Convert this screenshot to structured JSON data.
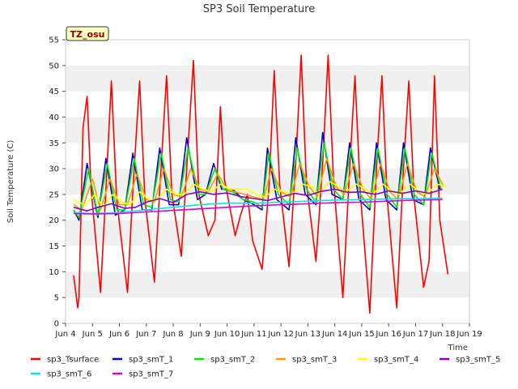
{
  "chart_data": {
    "type": "line",
    "title": "SP3 Soil Temperature",
    "xlabel": "Time",
    "ylabel": "Soil Temperature (C)",
    "site_tag": "TZ_osu",
    "ylim": [
      0,
      55
    ],
    "yticks": [
      0,
      5,
      10,
      15,
      20,
      25,
      30,
      35,
      40,
      45,
      50,
      55
    ],
    "xlim": [
      4,
      19
    ],
    "xticks": [
      4,
      5,
      6,
      7,
      8,
      9,
      10,
      11,
      12,
      13,
      14,
      15,
      16,
      17,
      18,
      19
    ],
    "xtick_labels": [
      "Jun 4",
      "Jun 5",
      "Jun 6",
      "Jun 7",
      "Jun 8",
      "Jun 9",
      "Jun 10",
      "Jun 11",
      "Jun 12",
      "Jun 13",
      "Jun 14",
      "Jun 15",
      "Jun 16",
      "Jun 17",
      "Jun 18",
      "Jun 19"
    ],
    "grid": "horizontal bands",
    "legend_placement": "bottom",
    "series": [
      {
        "name": "sp3_Tsurface",
        "color": "#ff0000",
        "x": [
          4.3,
          4.45,
          4.5,
          4.65,
          4.8,
          4.95,
          5.3,
          5.5,
          5.7,
          5.9,
          6.3,
          6.5,
          6.75,
          6.95,
          7.3,
          7.5,
          7.75,
          7.95,
          8.3,
          8.5,
          8.75,
          8.95,
          9.3,
          9.55,
          9.75,
          9.9,
          10.3,
          10.5,
          10.75,
          10.95,
          11.3,
          11.55,
          11.75,
          11.95,
          12.3,
          12.55,
          12.75,
          12.95,
          13.3,
          13.55,
          13.75,
          13.95,
          14.3,
          14.55,
          14.75,
          14.95,
          15.3,
          15.55,
          15.75,
          15.95,
          16.3,
          16.55,
          16.75,
          16.95,
          17.3,
          17.5,
          17.7,
          17.9,
          18.2
        ],
        "y": [
          9.3,
          3,
          5,
          38,
          44,
          26,
          6,
          26,
          47,
          24,
          6,
          26,
          47,
          24,
          8,
          26,
          48,
          25,
          13,
          30,
          51,
          25,
          17,
          20,
          42,
          28,
          17,
          21,
          25,
          16,
          10.5,
          26,
          49,
          27,
          11,
          31,
          52,
          27,
          12,
          31,
          52,
          28,
          5,
          30,
          48,
          25,
          2,
          30,
          48,
          24,
          3,
          30,
          47,
          24,
          7,
          12,
          48,
          20,
          9.5
        ]
      },
      {
        "name": "sp3_smT_1",
        "color": "#0000cc",
        "x": [
          4.3,
          4.5,
          4.8,
          5.2,
          5.5,
          5.85,
          6.2,
          6.5,
          6.85,
          7.2,
          7.5,
          7.85,
          8.2,
          8.5,
          8.9,
          9.2,
          9.5,
          9.8,
          10.2,
          10.6,
          11.0,
          11.3,
          11.5,
          11.85,
          12.3,
          12.55,
          12.9,
          13.3,
          13.55,
          13.9,
          14.3,
          14.55,
          14.9,
          15.3,
          15.55,
          15.9,
          16.3,
          16.55,
          16.9,
          17.3,
          17.55,
          17.9
        ],
        "y": [
          22,
          20,
          31,
          20.5,
          32,
          21,
          22,
          33,
          22,
          22,
          34,
          23,
          23,
          36,
          24,
          25,
          31,
          26,
          26,
          24,
          23,
          22,
          34,
          24,
          22,
          36,
          25,
          23,
          37,
          25,
          24,
          35,
          24,
          22,
          35,
          24,
          22,
          35,
          24,
          23,
          34,
          26
        ]
      },
      {
        "name": "sp3_smT_2",
        "color": "#00ee00",
        "x": [
          4.3,
          4.5,
          4.85,
          5.2,
          5.55,
          5.9,
          6.2,
          6.55,
          6.9,
          7.2,
          7.55,
          7.9,
          8.2,
          8.55,
          8.95,
          9.2,
          9.55,
          9.85,
          10.2,
          10.6,
          11.0,
          11.3,
          11.55,
          11.9,
          12.3,
          12.6,
          12.95,
          13.3,
          13.6,
          13.95,
          14.3,
          14.6,
          14.95,
          15.3,
          15.6,
          15.95,
          16.3,
          16.6,
          16.95,
          17.3,
          17.6,
          17.95
        ],
        "y": [
          22,
          20.5,
          30,
          21,
          31,
          22,
          22,
          32,
          23,
          22.5,
          33,
          24,
          23.5,
          34,
          25,
          25,
          30,
          26,
          25.5,
          24,
          23.5,
          22.5,
          33,
          25,
          23,
          34,
          26,
          23.5,
          35,
          26,
          24,
          34,
          25,
          22.5,
          34,
          25,
          22.5,
          34,
          25,
          23,
          33,
          26
        ]
      },
      {
        "name": "sp3_smT_3",
        "color": "#ff9900",
        "x": [
          4.3,
          4.6,
          5.0,
          5.3,
          5.65,
          6.0,
          6.3,
          6.65,
          7.0,
          7.3,
          7.65,
          8.0,
          8.3,
          8.65,
          9.0,
          9.3,
          9.65,
          10.0,
          10.3,
          10.65,
          11.0,
          11.35,
          11.65,
          12.0,
          12.35,
          12.7,
          13.05,
          13.35,
          13.7,
          14.05,
          14.35,
          14.7,
          15.05,
          15.35,
          15.7,
          16.05,
          16.35,
          16.7,
          17.05,
          17.35,
          17.7,
          18.05
        ],
        "y": [
          23,
          22,
          28,
          22,
          28,
          23,
          23,
          29,
          24,
          23.5,
          30,
          25,
          24.5,
          30,
          26,
          25.5,
          29,
          26,
          25.5,
          25,
          24.5,
          24,
          30,
          25.5,
          24.5,
          31,
          26.5,
          24.5,
          32,
          26.5,
          25,
          31,
          26,
          24,
          31,
          25.5,
          24,
          31,
          25.5,
          24.5,
          30,
          26.5
        ]
      },
      {
        "name": "sp3_smT_4",
        "color": "#ffff00",
        "x": [
          4.3,
          4.7,
          5.1,
          5.4,
          5.75,
          6.1,
          6.4,
          6.75,
          7.1,
          7.4,
          7.75,
          8.1,
          8.4,
          8.75,
          9.1,
          9.4,
          9.75,
          10.1,
          10.4,
          10.75,
          11.1,
          11.4,
          11.75,
          12.1,
          12.4,
          12.8,
          13.15,
          13.4,
          13.8,
          14.15,
          14.4,
          14.8,
          15.15,
          15.4,
          15.8,
          16.15,
          16.4,
          16.8,
          17.15,
          17.4,
          17.8,
          18.15
        ],
        "y": [
          24,
          23,
          25,
          22.5,
          25,
          23.5,
          23,
          25.5,
          24,
          24,
          26,
          25,
          25,
          27,
          26,
          25.5,
          27,
          26,
          26,
          26,
          25,
          24.5,
          26,
          25.5,
          25,
          27,
          26.5,
          25,
          27.5,
          26.5,
          25.5,
          27,
          26,
          25,
          27,
          25.5,
          25,
          27,
          25.5,
          25,
          27,
          26.5
        ]
      },
      {
        "name": "sp3_smT_5",
        "color": "#8800cc",
        "x": [
          4.3,
          4.8,
          5.2,
          5.7,
          6.2,
          6.6,
          7.0,
          7.5,
          8.0,
          8.5,
          9.0,
          9.5,
          10.0,
          10.5,
          11.0,
          11.5,
          12.0,
          12.5,
          13.0,
          13.5,
          14.0,
          14.5,
          15.0,
          15.5,
          16.0,
          16.5,
          17.0,
          17.5,
          18.0
        ],
        "y": [
          22.5,
          21.8,
          22.5,
          23.2,
          22.3,
          22.5,
          23.5,
          24.2,
          23.4,
          25,
          25.5,
          25,
          25.3,
          24.6,
          24.2,
          23.8,
          24.5,
          25.2,
          24.8,
          25.6,
          26,
          25.4,
          25.5,
          25,
          25.7,
          25.2,
          25.7,
          25.2,
          26
        ]
      },
      {
        "name": "sp3_smT_6",
        "color": "#00e5ee",
        "x": [
          4.3,
          5.0,
          6.0,
          7.0,
          8.0,
          9.0,
          10.0,
          11.0,
          12.0,
          13.0,
          14.0,
          15.0,
          16.0,
          17.0,
          18.0
        ],
        "y": [
          21.5,
          21.3,
          21.5,
          22,
          22.5,
          23,
          23.3,
          23.3,
          23.5,
          23.7,
          23.9,
          24,
          24.1,
          24.2,
          24.3
        ]
      },
      {
        "name": "sp3_smT_7",
        "color": "#dd00dd",
        "x": [
          4.3,
          5.0,
          6.0,
          7.0,
          8.0,
          9.0,
          10.0,
          11.0,
          12.0,
          13.0,
          14.0,
          15.0,
          16.0,
          17.0,
          18.0
        ],
        "y": [
          21.3,
          21.2,
          21.3,
          21.6,
          21.9,
          22.2,
          22.5,
          22.8,
          23,
          23.2,
          23.4,
          23.5,
          23.7,
          23.9,
          24
        ]
      }
    ]
  }
}
